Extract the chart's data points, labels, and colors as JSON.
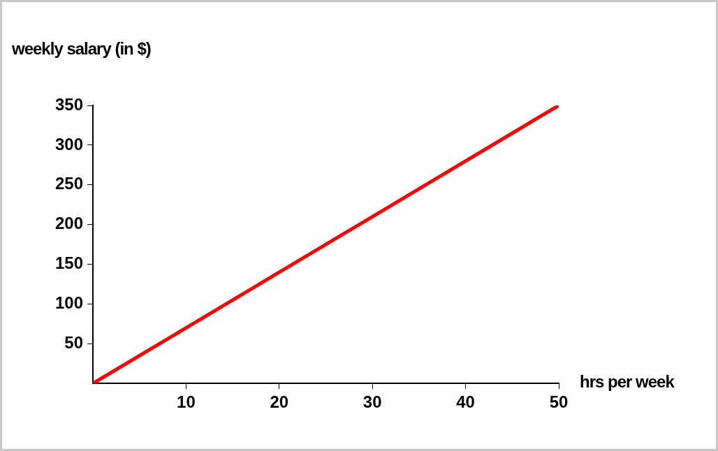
{
  "chart_data": {
    "type": "line",
    "xlabel": "hrs per week",
    "ylabel": "weekly salary (in $)",
    "x": [
      0,
      10,
      20,
      30,
      40,
      50
    ],
    "series": [
      {
        "color": "#ff0000",
        "values": [
          0,
          70,
          140,
          210,
          280,
          350
        ]
      }
    ],
    "xlim": [
      0,
      50
    ],
    "xticks": [
      10,
      20,
      30,
      40,
      50
    ],
    "ylim": [
      0,
      350
    ],
    "yticks": [
      50,
      100,
      150,
      200,
      250,
      300,
      350
    ],
    "grid": false,
    "legend": false,
    "marker": "none",
    "line_style": "solid"
  }
}
